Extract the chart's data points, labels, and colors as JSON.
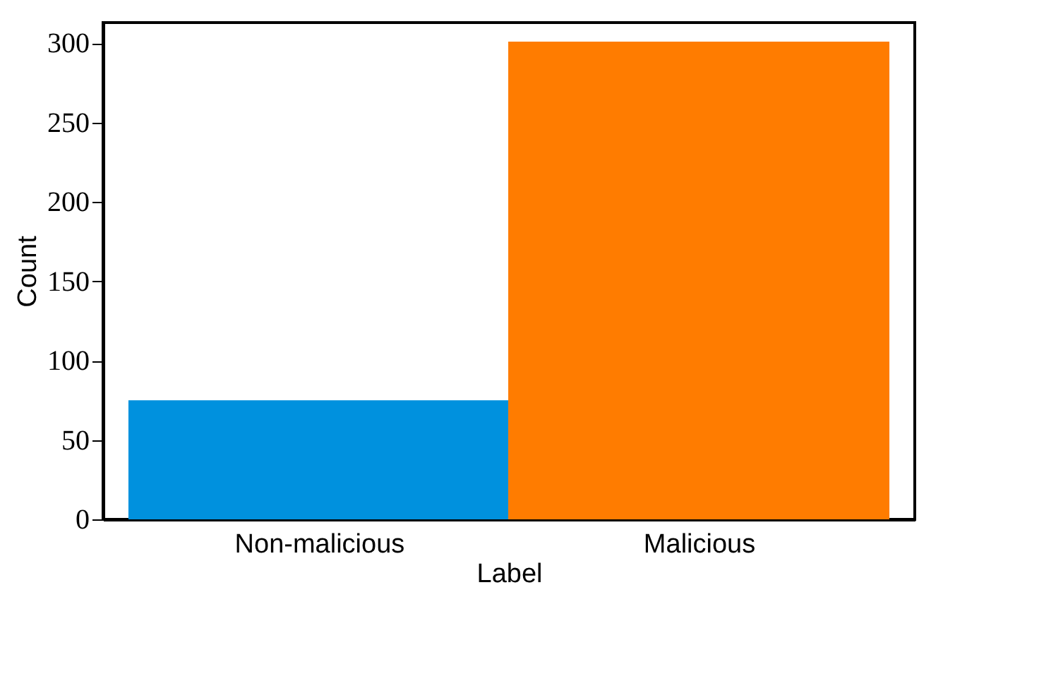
{
  "chart_data": {
    "type": "bar",
    "xlabel": "Label",
    "ylabel": "Count",
    "categories": [
      "Non-malicious",
      "Malicious"
    ],
    "values": [
      75,
      301
    ],
    "colors": [
      "#0091de",
      "#ff7c00"
    ],
    "ylim": [
      0,
      313
    ],
    "yticks": [
      0,
      50,
      100,
      150,
      200,
      250,
      300
    ],
    "grid": false
  }
}
